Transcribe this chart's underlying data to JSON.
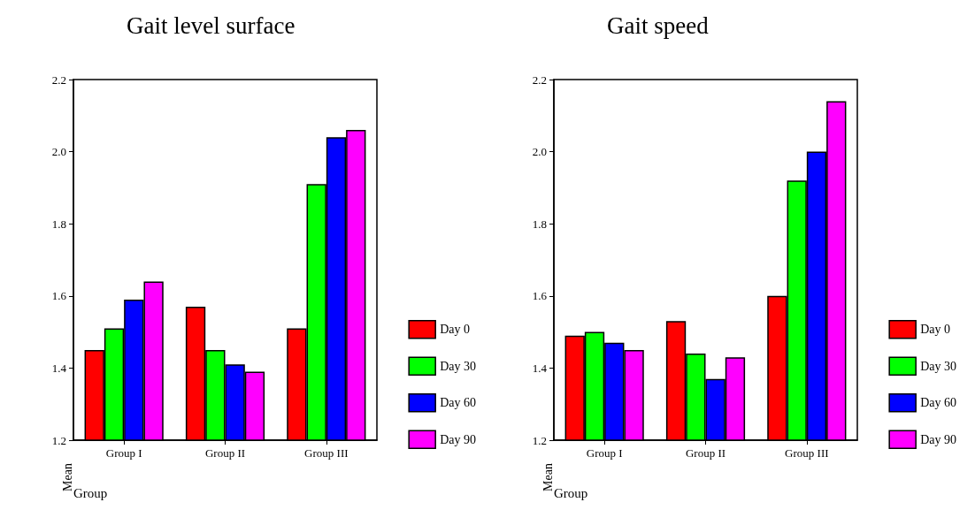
{
  "chart_data": [
    {
      "type": "bar",
      "title": "Gait level surface",
      "xlabel": "Group",
      "ylabel": "Mean",
      "categories": [
        "Group I",
        "Group II",
        "Group III"
      ],
      "series": [
        {
          "name": "Day 0",
          "color": "#ff0000",
          "values": [
            1.45,
            1.57,
            1.51
          ]
        },
        {
          "name": "Day 30",
          "color": "#00ff00",
          "values": [
            1.51,
            1.45,
            1.91
          ]
        },
        {
          "name": "Day 60",
          "color": "#0000ff",
          "values": [
            1.59,
            1.41,
            2.04
          ]
        },
        {
          "name": "Day 90",
          "color": "#ff00ff",
          "values": [
            1.64,
            1.39,
            2.06
          ]
        }
      ],
      "ylim": [
        1.2,
        2.2
      ],
      "yticks": [
        1.2,
        1.4,
        1.6,
        1.8,
        {
          "value": 2,
          "label": "2.0"
        },
        2.2
      ],
      "grid": false,
      "legend": "right"
    },
    {
      "type": "bar",
      "title": "Gait speed",
      "xlabel": "Group",
      "ylabel": "Mean",
      "categories": [
        "Group I",
        "Group II",
        "Group III"
      ],
      "series": [
        {
          "name": "Day 0",
          "color": "#ff0000",
          "values": [
            1.49,
            1.53,
            1.6
          ]
        },
        {
          "name": "Day 30",
          "color": "#00ff00",
          "values": [
            1.5,
            1.44,
            1.92
          ]
        },
        {
          "name": "Day 60",
          "color": "#0000ff",
          "values": [
            1.47,
            1.37,
            2.0
          ]
        },
        {
          "name": "Day 90",
          "color": "#ff00ff",
          "values": [
            1.45,
            1.43,
            2.14
          ]
        }
      ],
      "ylim": [
        1.2,
        2.2
      ],
      "yticks": [
        1.2,
        1.4,
        1.6,
        1.8,
        {
          "value": 2,
          "label": "2.0"
        },
        2.2
      ],
      "grid": false,
      "legend": "right"
    }
  ]
}
